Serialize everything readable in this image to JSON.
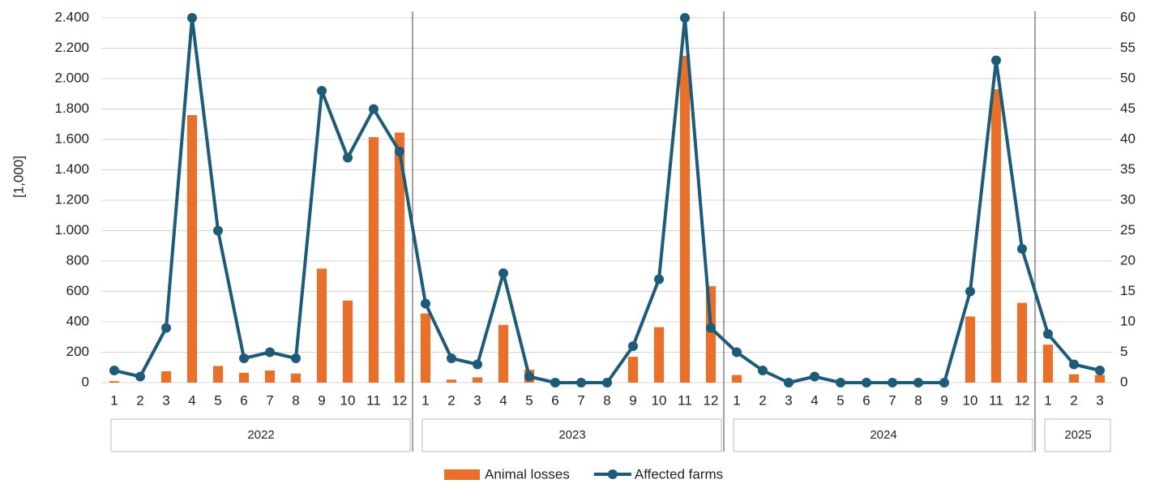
{
  "chart_data": {
    "type": "bar_line",
    "y_label": "[1,000]",
    "groups": [
      {
        "name": "2022",
        "categories": [
          "1",
          "2",
          "3",
          "4",
          "5",
          "6",
          "7",
          "8",
          "9",
          "10",
          "11",
          "12"
        ]
      },
      {
        "name": "2023",
        "categories": [
          "1",
          "2",
          "3",
          "4",
          "5",
          "6",
          "7",
          "8",
          "9",
          "10",
          "11",
          "12"
        ]
      },
      {
        "name": "2024",
        "categories": [
          "1",
          "2",
          "3",
          "4",
          "5",
          "6",
          "7",
          "8",
          "9",
          "10",
          "11",
          "12"
        ]
      },
      {
        "name": "2025",
        "categories": [
          "1",
          "2",
          "3"
        ]
      }
    ],
    "series": [
      {
        "name": "Animal losses",
        "type": "bar",
        "color": "#e8702a",
        "axis": "y",
        "values": [
          10,
          0,
          75,
          1760,
          110,
          65,
          80,
          60,
          750,
          540,
          1615,
          1645,
          455,
          20,
          35,
          380,
          85,
          0,
          0,
          0,
          170,
          365,
          2150,
          635,
          50,
          0,
          0,
          0,
          0,
          0,
          0,
          0,
          0,
          435,
          1930,
          525,
          250,
          55,
          50
        ]
      },
      {
        "name": "Affected farms",
        "type": "line",
        "color": "#1d5b79",
        "axis": "y2",
        "values": [
          2,
          1,
          9,
          60,
          25,
          4,
          5,
          4,
          48,
          37,
          45,
          38,
          13,
          4,
          3,
          18,
          1,
          0,
          0,
          0,
          6,
          17,
          60,
          9,
          5,
          2,
          0,
          1,
          0,
          0,
          0,
          0,
          0,
          15,
          53,
          22,
          8,
          3,
          2
        ]
      }
    ],
    "ylim": [
      0,
      2400
    ],
    "yticks": [
      0,
      200,
      400,
      600,
      800,
      {
        "value": 1000,
        "label": "1.000"
      },
      {
        "value": 1200,
        "label": "1.200"
      },
      {
        "value": 1400,
        "label": "1.400"
      },
      {
        "value": 1600,
        "label": "1.600"
      },
      {
        "value": 1800,
        "label": "1.800"
      },
      {
        "value": 2000,
        "label": "2.000"
      },
      {
        "value": 2200,
        "label": "2.200"
      },
      {
        "value": 2400,
        "label": "2.400"
      }
    ],
    "y2lim": [
      0,
      60
    ],
    "y2ticks": [
      0,
      5,
      10,
      15,
      20,
      25,
      30,
      35,
      40,
      45,
      50,
      55,
      60
    ],
    "grid": true,
    "legend": "bottom"
  }
}
